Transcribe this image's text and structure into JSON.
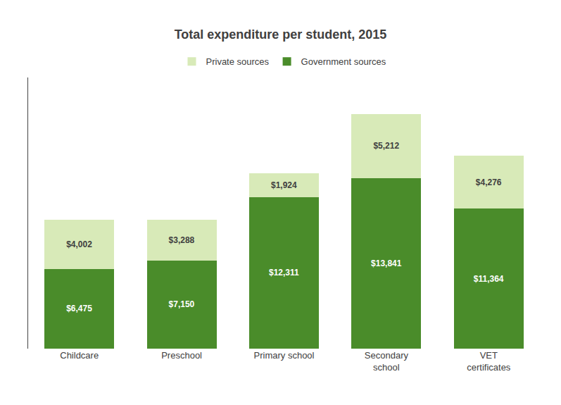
{
  "chart_data": {
    "type": "bar",
    "title": "Total expenditure per student, 2015",
    "categories": [
      "Childcare",
      "Preschool",
      "Primary school",
      "Secondary\nschool",
      "VET\ncertificates"
    ],
    "series": [
      {
        "name": "Government sources",
        "color": "#4a8c2a",
        "values": [
          6475,
          7150,
          12311,
          13841,
          11364
        ],
        "value_labels": [
          "$6,475",
          "$7,150",
          "$12,311",
          "$13,841",
          "$11,364"
        ]
      },
      {
        "name": "Private sources",
        "color": "#d8eab8",
        "values": [
          4002,
          3288,
          1924,
          5212,
          4276
        ],
        "value_labels": [
          "$4,002",
          "$3,288",
          "$1,924",
          "$5,212",
          "$4,276"
        ]
      }
    ],
    "stacked": true,
    "data_labels": true,
    "ylim": [
      0,
      22000
    ],
    "tick_labels": "x",
    "grid": false,
    "legend": "top"
  }
}
